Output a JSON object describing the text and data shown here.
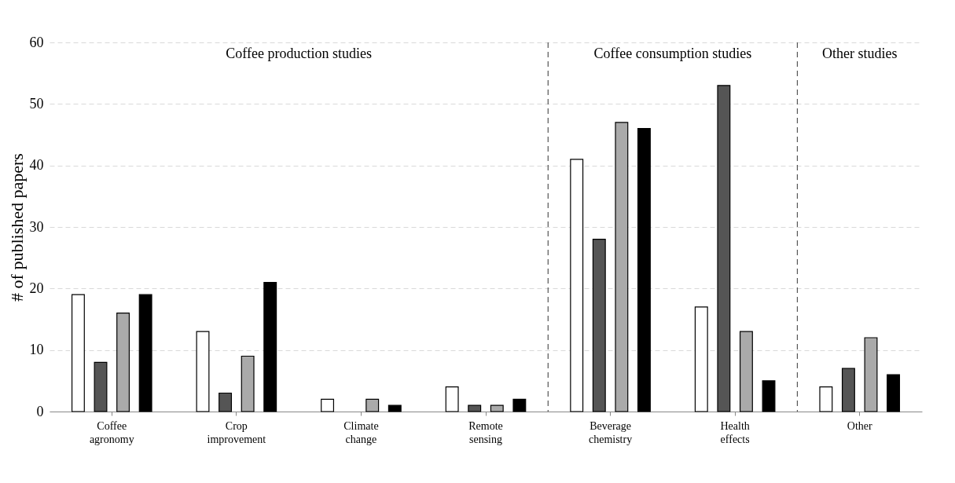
{
  "chart_data": {
    "type": "bar",
    "ylabel": "# of published papers",
    "categories": [
      "Coffee agronomy",
      "Crop improvement",
      "Climate change",
      "Remote sensing",
      "Beverage chemistry",
      "Health effects",
      "Other"
    ],
    "series": [
      {
        "color": "#ffffff",
        "values": [
          19,
          13,
          2,
          4,
          41,
          17,
          4
        ]
      },
      {
        "color": "#555555",
        "values": [
          8,
          3,
          0,
          1,
          28,
          53,
          7
        ]
      },
      {
        "color": "#aaaaaa",
        "values": [
          16,
          9,
          2,
          1,
          47,
          13,
          12
        ]
      },
      {
        "color": "#000000",
        "values": [
          19,
          21,
          1,
          2,
          46,
          5,
          6
        ]
      }
    ],
    "ylim": [
      0,
      60
    ],
    "yticks": [
      0,
      10,
      20,
      30,
      40,
      50,
      60
    ],
    "grid": "y",
    "annotations": [
      "Coffee production studies",
      "Coffee consumption studies",
      "Other studies"
    ]
  }
}
